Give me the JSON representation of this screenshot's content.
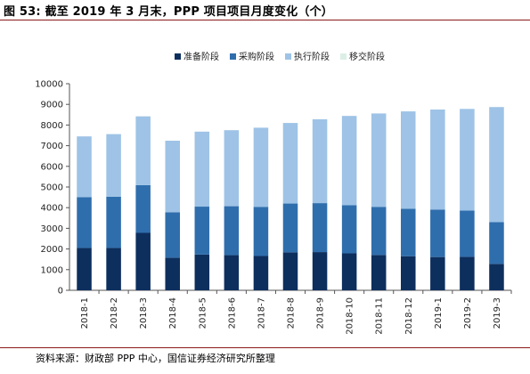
{
  "header": {
    "title": "图 53:  截至 2019 年 3 月末，PPP 项目项目月度变化（个）"
  },
  "footer": {
    "source": "资料来源：财政部 PPP 中心，国信证券经济研究所整理"
  },
  "colors": {
    "series": [
      "#0d2f5e",
      "#2f6ead",
      "#9ec3e6",
      "#dcefe6"
    ],
    "axis": "#555555",
    "rule": "#8b1a1a"
  },
  "chart_data": {
    "type": "bar",
    "stacked": true,
    "categories": [
      "2018-1",
      "2018-2",
      "2018-3",
      "2018-4",
      "2018-5",
      "2018-6",
      "2018-7",
      "2018-8",
      "2018-9",
      "2018-10",
      "2018-11",
      "2018-12",
      "2019-1",
      "2019-2",
      "2019-3"
    ],
    "series": [
      {
        "name": "准备阶段",
        "values": [
          2050,
          2050,
          2780,
          1580,
          1730,
          1700,
          1660,
          1840,
          1850,
          1790,
          1710,
          1650,
          1610,
          1620,
          1280
        ]
      },
      {
        "name": "采购阶段",
        "values": [
          2460,
          2480,
          2310,
          2200,
          2320,
          2370,
          2380,
          2360,
          2370,
          2330,
          2330,
          2300,
          2300,
          2240,
          2020
        ]
      },
      {
        "name": "执行阶段",
        "values": [
          2940,
          3030,
          3330,
          3460,
          3630,
          3680,
          3830,
          3900,
          4060,
          4320,
          4520,
          4710,
          4840,
          4920,
          5570
        ]
      },
      {
        "name": "移交阶段",
        "values": [
          0,
          0,
          0,
          0,
          0,
          0,
          0,
          0,
          0,
          0,
          0,
          0,
          0,
          0,
          0
        ]
      }
    ],
    "ylim": [
      0,
      10000
    ],
    "yticks": [
      "0",
      "1000",
      "2000",
      "3000",
      "4000",
      "5000",
      "6000",
      "7000",
      "8000",
      "9000",
      "10000"
    ],
    "legend_position": "top-center",
    "grid": false,
    "xlabel": "",
    "ylabel": ""
  }
}
